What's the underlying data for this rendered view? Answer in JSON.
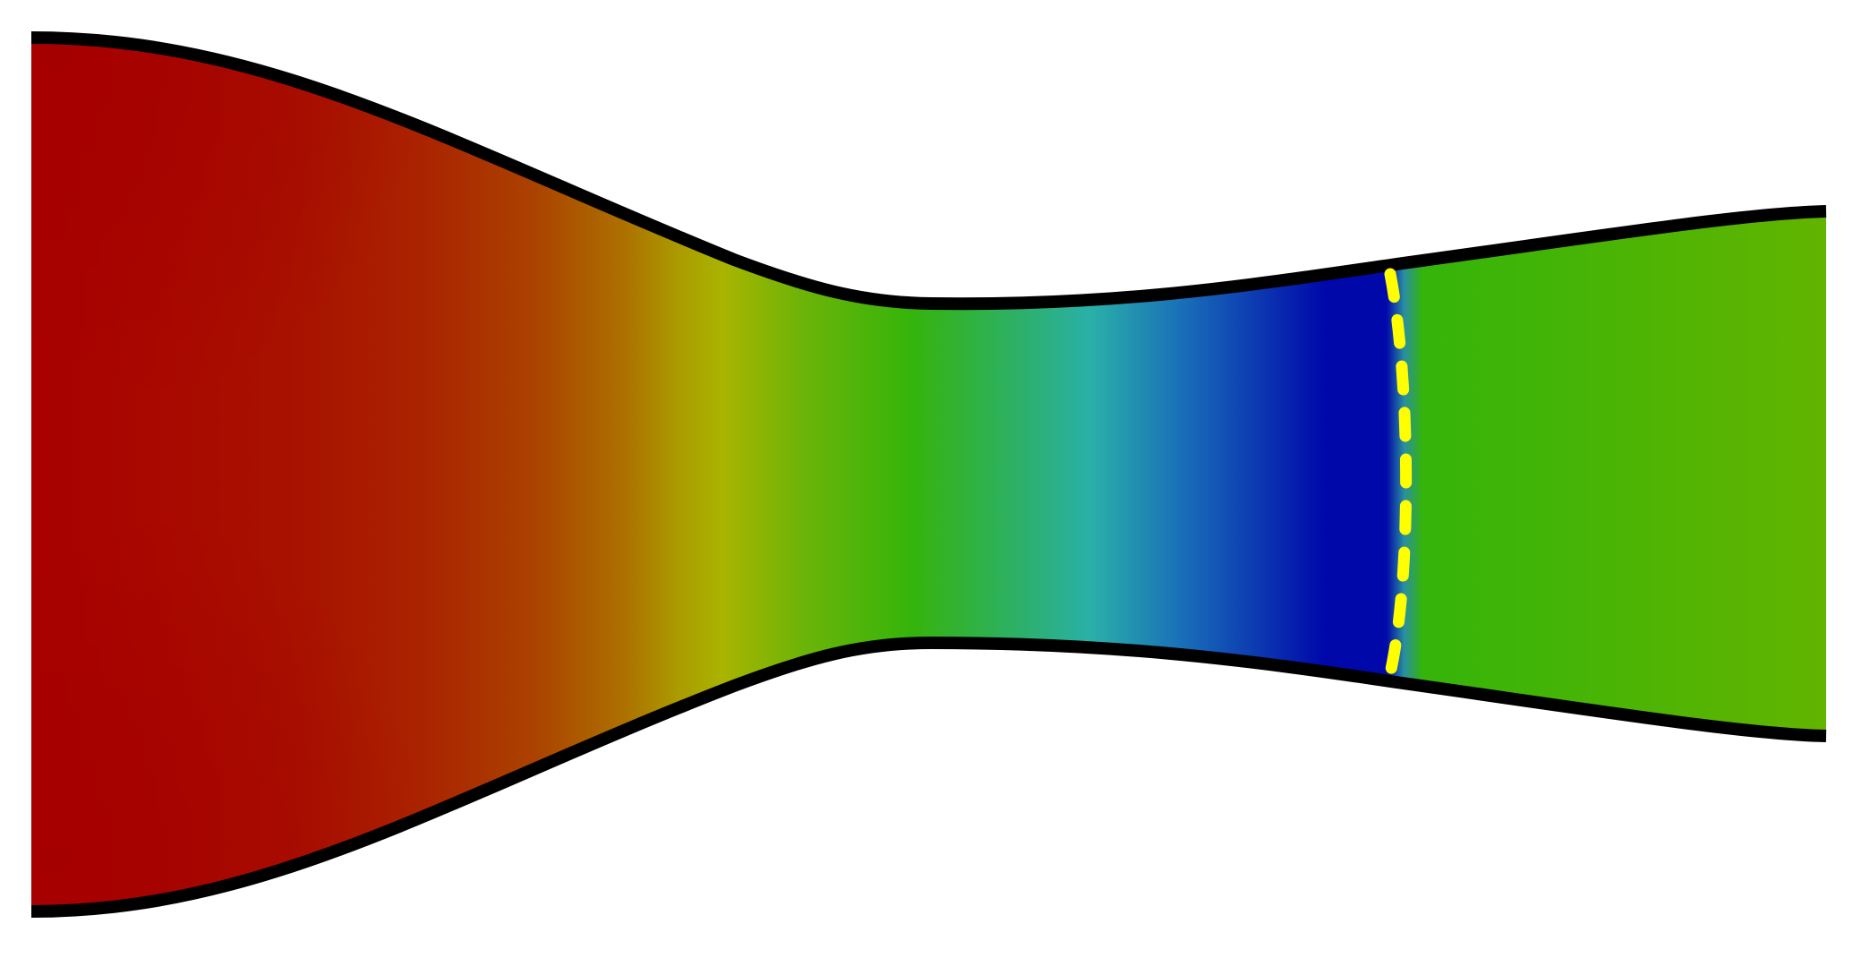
{
  "figure": {
    "kind": "nozzle-contour",
    "colormap": [
      "#a80000",
      "#aa2a00",
      "#ad7a00",
      "#a9b400",
      "#35b40a",
      "#2ab0a8",
      "#1a4fb8",
      "#0008aa",
      "#35b40a",
      "#62b400"
    ],
    "wall_color": "#000000",
    "shock_line_color": "#ffff00",
    "background": "#ffffff"
  }
}
